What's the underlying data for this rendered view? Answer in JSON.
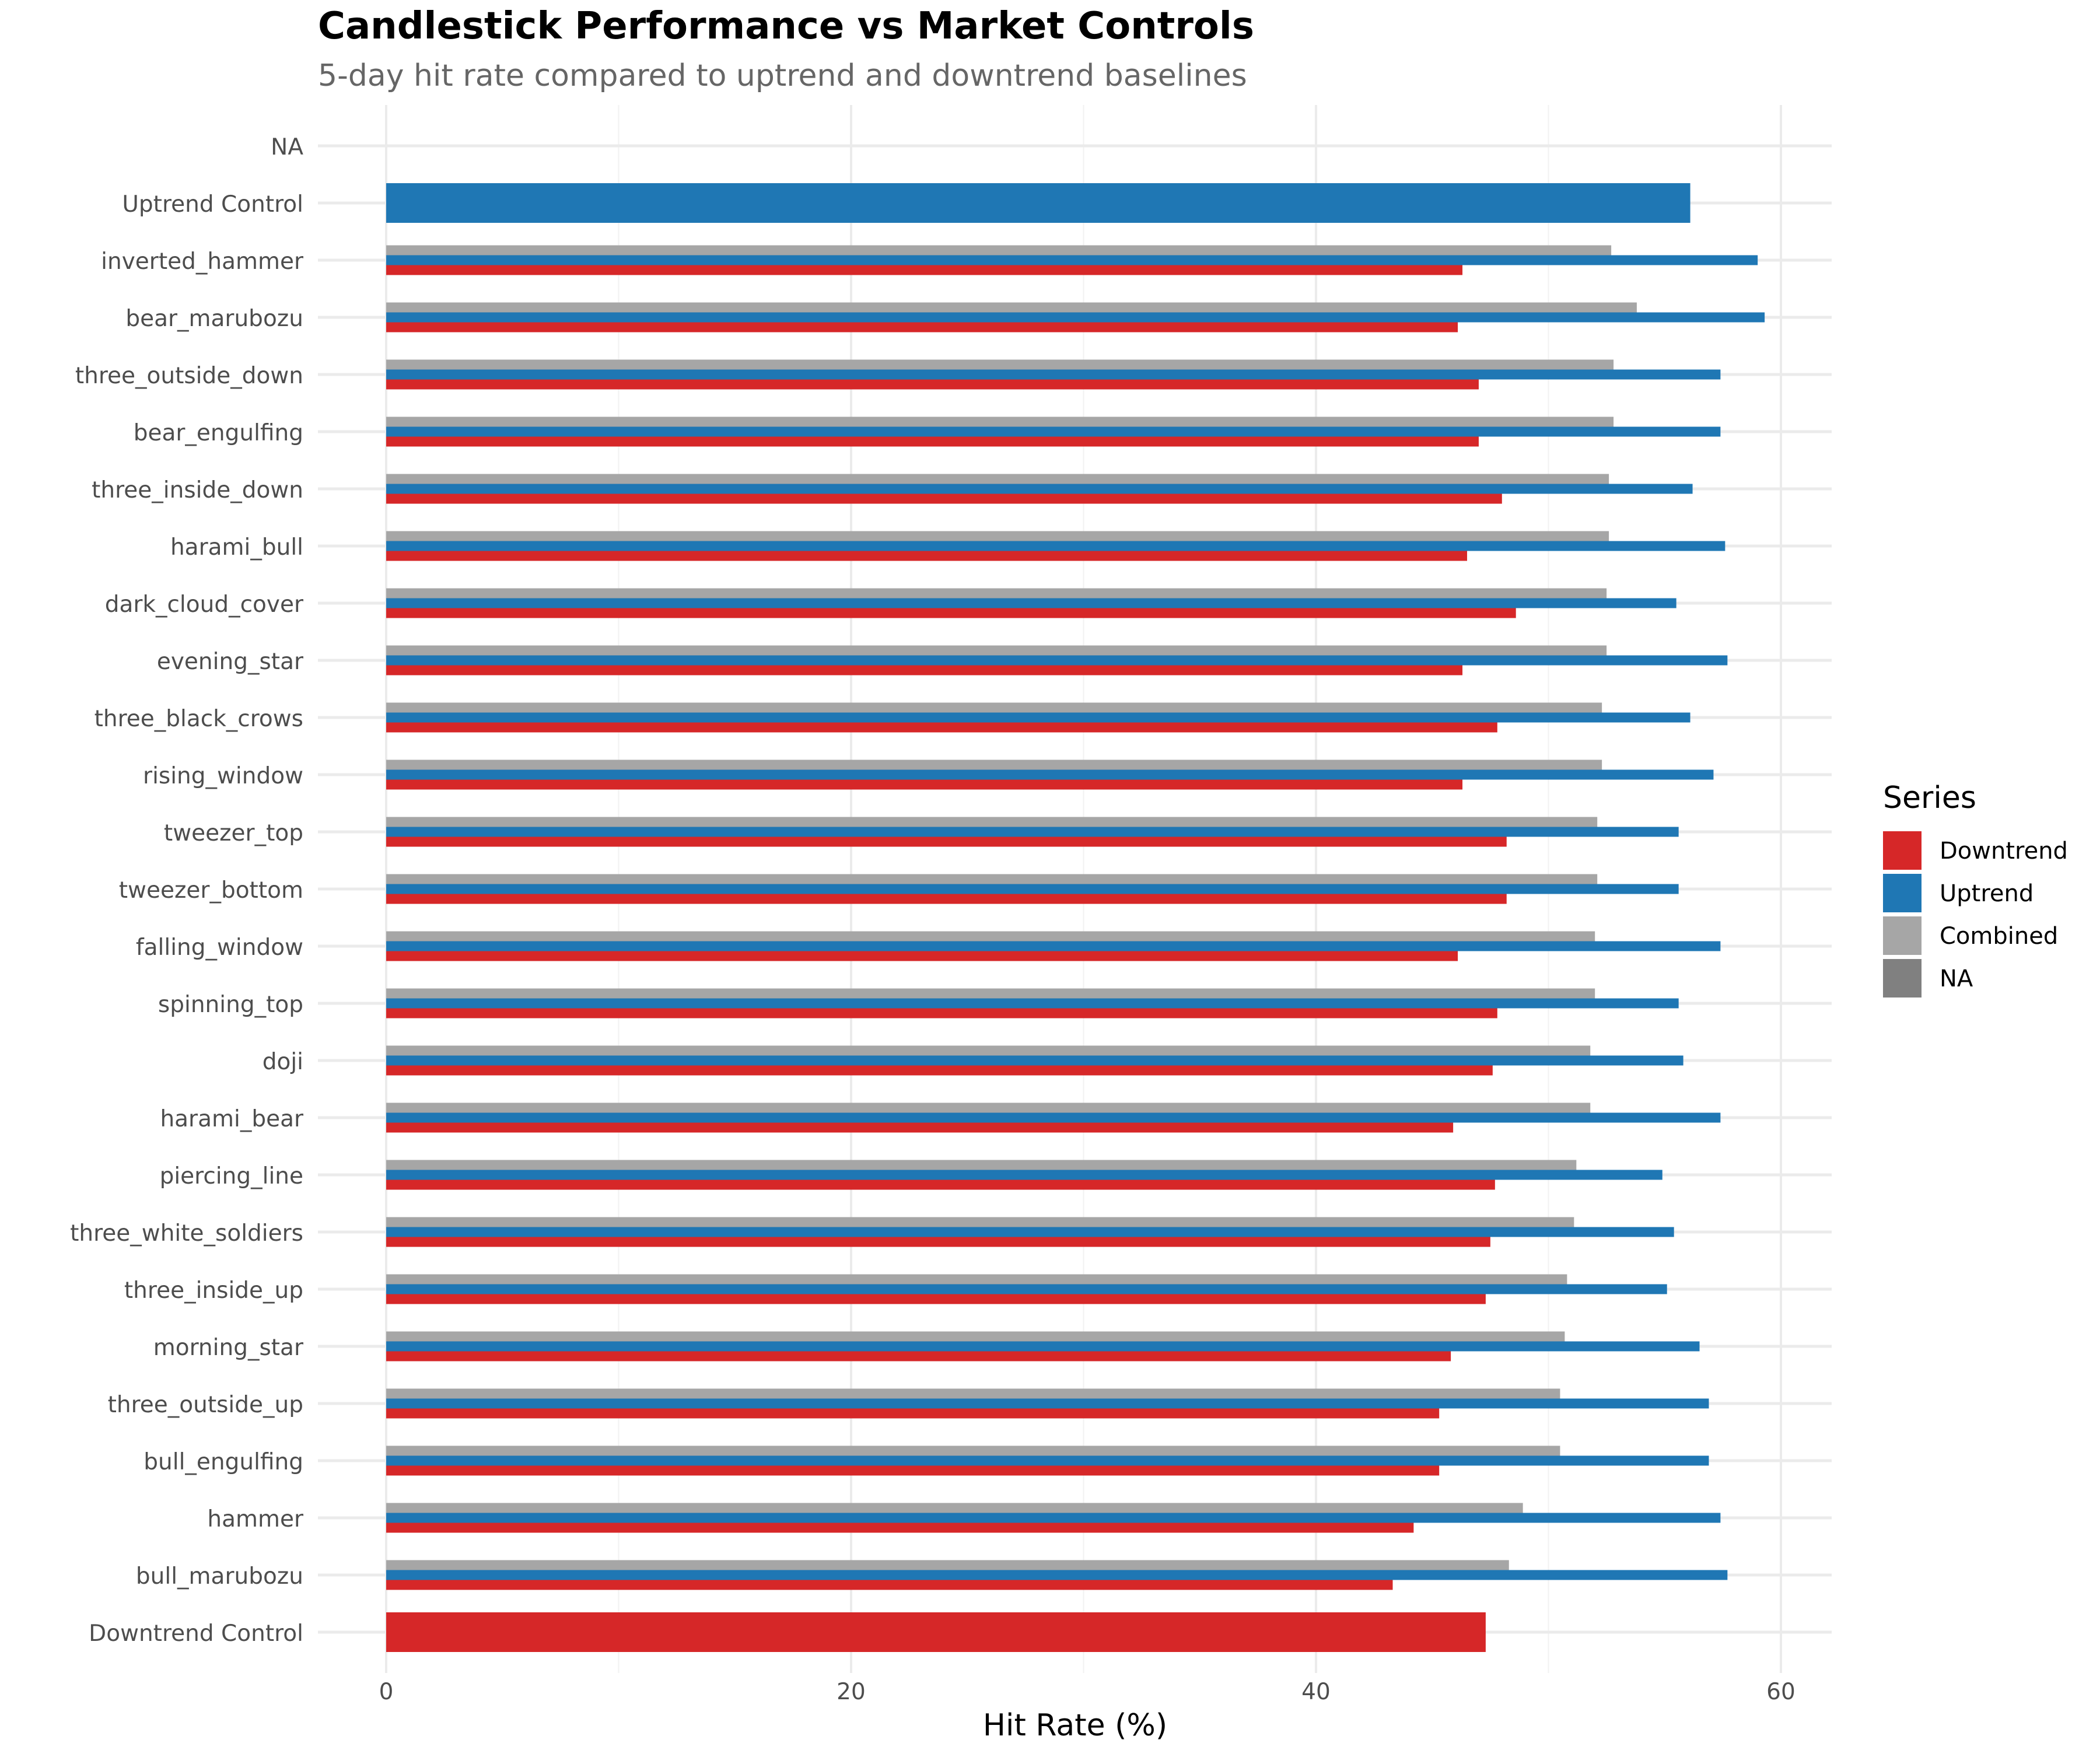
{
  "chart_data": {
    "type": "bar",
    "orientation": "horizontal",
    "title": "Candlestick Performance vs Market Controls",
    "subtitle": "5-day hit rate compared to uptrend and downtrend baselines",
    "xlabel": "Hit Rate (%)",
    "ylabel": "",
    "xlim": [
      0,
      62
    ],
    "x_ticks": [
      0,
      20,
      40,
      60
    ],
    "grid": true,
    "legend": {
      "title": "Series",
      "position": "right",
      "entries": [
        {
          "name": "Downtrend",
          "color": "#d62728"
        },
        {
          "name": "Uptrend",
          "color": "#1f77b4"
        },
        {
          "name": "Combined",
          "color": "#a6a6a6"
        },
        {
          "name": "NA",
          "color": "#808080"
        }
      ]
    },
    "categories": [
      "NA",
      "Uptrend Control",
      "inverted_hammer",
      "bear_marubozu",
      "three_outside_down",
      "bear_engulfing",
      "three_inside_down",
      "harami_bull",
      "dark_cloud_cover",
      "evening_star",
      "three_black_crows",
      "rising_window",
      "tweezer_top",
      "tweezer_bottom",
      "falling_window",
      "spinning_top",
      "doji",
      "harami_bear",
      "piercing_line",
      "three_white_soldiers",
      "three_inside_up",
      "morning_star",
      "three_outside_up",
      "bull_engulfing",
      "hammer",
      "bull_marubozu",
      "Downtrend Control"
    ],
    "series": [
      {
        "name": "Combined",
        "color": "#a6a6a6",
        "values": [
          null,
          null,
          52.7,
          53.8,
          52.8,
          52.8,
          52.6,
          52.6,
          52.5,
          52.5,
          52.3,
          52.3,
          52.1,
          52.1,
          52.0,
          52.0,
          51.8,
          51.8,
          51.2,
          51.1,
          50.8,
          50.7,
          50.5,
          50.5,
          48.9,
          48.3,
          null
        ]
      },
      {
        "name": "Uptrend",
        "color": "#1f77b4",
        "values": [
          null,
          56.1,
          59.0,
          59.3,
          57.4,
          57.4,
          56.2,
          57.6,
          55.5,
          57.7,
          56.1,
          57.1,
          55.6,
          55.6,
          57.4,
          55.6,
          55.8,
          57.4,
          54.9,
          55.4,
          55.1,
          56.5,
          56.9,
          56.9,
          57.4,
          57.7,
          null
        ]
      },
      {
        "name": "Downtrend",
        "color": "#d62728",
        "values": [
          null,
          null,
          46.3,
          46.1,
          47.0,
          47.0,
          48.0,
          46.5,
          48.6,
          46.3,
          47.8,
          46.3,
          48.2,
          48.2,
          46.1,
          47.8,
          47.6,
          45.9,
          47.7,
          47.5,
          47.3,
          45.8,
          45.3,
          45.3,
          44.2,
          43.3,
          47.3
        ]
      }
    ]
  }
}
